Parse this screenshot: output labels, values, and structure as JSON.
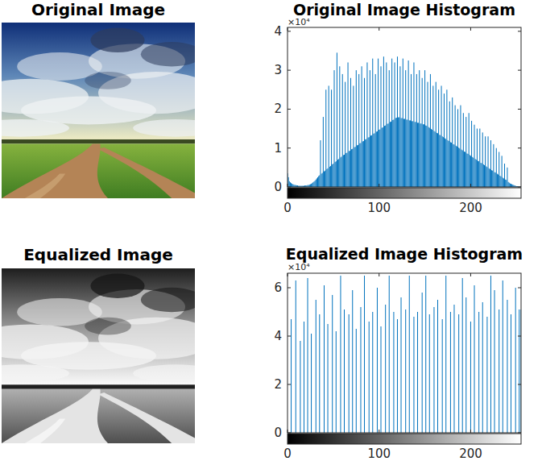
{
  "images": [
    {
      "title": "Original Image"
    },
    {
      "title": "Equalized Image"
    }
  ],
  "chart_data": [
    {
      "type": "stem",
      "title": "Original Image Histogram",
      "y_scale_label": "×10⁴",
      "color": "#0072bd",
      "grid": false,
      "xlim": [
        0,
        255
      ],
      "xticks": [
        0,
        100,
        200
      ],
      "ylim": [
        0,
        4.1
      ],
      "yticks": [
        0,
        1,
        2,
        3,
        4
      ],
      "x": [
        0,
        1,
        2,
        3,
        4,
        5,
        6,
        7,
        8,
        9,
        10,
        11,
        12,
        13,
        14,
        15,
        16,
        17,
        18,
        19,
        20,
        21,
        22,
        23,
        24,
        25,
        26,
        27,
        28,
        29,
        30,
        31,
        32,
        33,
        34,
        35,
        36,
        37,
        38,
        39,
        40,
        41,
        42,
        43,
        44,
        45,
        46,
        47,
        48,
        49,
        50,
        51,
        52,
        53,
        54,
        55,
        56,
        57,
        58,
        59,
        60,
        61,
        62,
        63,
        64,
        65,
        66,
        67,
        68,
        69,
        70,
        71,
        72,
        73,
        74,
        75,
        76,
        77,
        78,
        79,
        80,
        81,
        82,
        83,
        84,
        85,
        86,
        87,
        88,
        89,
        90,
        91,
        92,
        93,
        94,
        95,
        96,
        97,
        98,
        99,
        100,
        101,
        102,
        103,
        104,
        105,
        106,
        107,
        108,
        109,
        110,
        111,
        112,
        113,
        114,
        115,
        116,
        117,
        118,
        119,
        120,
        121,
        122,
        123,
        124,
        125,
        126,
        127,
        128,
        129,
        130,
        131,
        132,
        133,
        134,
        135,
        136,
        137,
        138,
        139,
        140,
        141,
        142,
        143,
        144,
        145,
        146,
        147,
        148,
        149,
        150,
        151,
        152,
        153,
        154,
        155,
        156,
        157,
        158,
        159,
        160,
        161,
        162,
        163,
        164,
        165,
        166,
        167,
        168,
        169,
        170,
        171,
        172,
        173,
        174,
        175,
        176,
        177,
        178,
        179,
        180,
        181,
        182,
        183,
        184,
        185,
        186,
        187,
        188,
        189,
        190,
        191,
        192,
        193,
        194,
        195,
        196,
        197,
        198,
        199,
        200,
        201,
        202,
        203,
        204,
        205,
        206,
        207,
        208,
        209,
        210,
        211,
        212,
        213,
        214,
        215,
        216,
        217,
        218,
        219,
        220,
        221,
        222,
        223,
        224,
        225,
        226,
        227,
        228,
        229,
        230,
        231,
        232,
        233,
        234,
        235,
        236,
        237,
        238,
        239,
        240,
        241,
        242,
        243,
        244,
        245,
        246,
        247,
        248,
        249,
        250,
        251,
        252,
        253,
        254,
        255
      ],
      "values": [
        0.35,
        0.25,
        0.15,
        0.12,
        0.1,
        0.08,
        0.07,
        0.06,
        0.05,
        0.05,
        0.04,
        0.04,
        0.03,
        0.03,
        0.03,
        0.03,
        0.03,
        0.03,
        0.03,
        0.04,
        0.04,
        0.04,
        0.05,
        0.05,
        0.06,
        0.07,
        0.08,
        0.1,
        0.12,
        0.14,
        0.16,
        0.19,
        0.22,
        0.25,
        0.28,
        0.3,
        1.2,
        0.34,
        0.36,
        1.8,
        0.4,
        0.42,
        2.5,
        0.46,
        0.48,
        2.6,
        0.52,
        0.54,
        2.5,
        0.58,
        0.6,
        3.0,
        0.64,
        0.66,
        3.45,
        0.7,
        0.72,
        3.1,
        0.76,
        0.78,
        2.9,
        0.82,
        0.83,
        2.7,
        0.87,
        0.88,
        3.2,
        0.92,
        0.93,
        2.8,
        0.97,
        0.98,
        2.6,
        1.02,
        1.03,
        3.0,
        1.07,
        1.08,
        2.9,
        1.12,
        1.13,
        3.1,
        1.17,
        1.18,
        2.8,
        1.22,
        1.23,
        3.2,
        1.27,
        1.28,
        3.0,
        1.32,
        1.33,
        3.3,
        1.37,
        1.38,
        2.9,
        1.42,
        1.43,
        3.3,
        1.47,
        1.48,
        3.1,
        1.52,
        1.53,
        3.35,
        1.57,
        1.58,
        3.2,
        1.62,
        1.63,
        3.0,
        1.67,
        1.68,
        3.3,
        1.72,
        1.73,
        3.2,
        1.77,
        1.78,
        3.35,
        1.79,
        1.79,
        3.1,
        1.77,
        1.77,
        3.3,
        1.75,
        1.75,
        3.0,
        1.73,
        1.73,
        3.25,
        1.71,
        1.71,
        2.9,
        1.69,
        1.69,
        3.2,
        1.67,
        1.67,
        2.9,
        1.65,
        1.65,
        3.0,
        1.63,
        1.63,
        2.8,
        1.61,
        1.61,
        3.0,
        1.58,
        1.57,
        2.7,
        1.54,
        1.52,
        2.9,
        1.49,
        1.47,
        2.6,
        1.44,
        1.42,
        2.7,
        1.39,
        1.38,
        2.5,
        1.34,
        1.33,
        2.6,
        1.3,
        1.28,
        2.4,
        1.25,
        1.23,
        2.5,
        1.2,
        1.18,
        2.2,
        1.15,
        1.14,
        2.3,
        1.1,
        1.09,
        2.1,
        1.06,
        1.04,
        2.0,
        1.01,
        0.99,
        2.1,
        0.96,
        0.94,
        1.9,
        0.91,
        0.9,
        1.8,
        0.86,
        0.85,
        1.9,
        0.82,
        0.8,
        1.7,
        0.77,
        0.75,
        1.6,
        0.72,
        0.7,
        1.5,
        0.67,
        0.66,
        1.5,
        0.62,
        0.61,
        1.4,
        0.58,
        0.56,
        1.3,
        0.53,
        0.51,
        1.3,
        0.48,
        0.46,
        1.2,
        0.43,
        0.42,
        1.1,
        0.38,
        0.37,
        1.0,
        0.34,
        0.32,
        0.9,
        0.29,
        0.27,
        0.8,
        0.24,
        0.22,
        0.6,
        0.19,
        0.18,
        0.5,
        0.13,
        0.11,
        0.09,
        0.08,
        0.07,
        0.06,
        0.05,
        0.04,
        0.03,
        0.02,
        0.02,
        0.01,
        0.01,
        0.01,
        0.01
      ]
    },
    {
      "type": "stem",
      "title": "Equalized Image Histogram",
      "y_scale_label": "×10⁴",
      "color": "#0072bd",
      "grid": false,
      "xlim": [
        0,
        255
      ],
      "xticks": [
        0,
        100,
        200
      ],
      "ylim": [
        0,
        6.6
      ],
      "yticks": [
        0,
        2,
        4,
        6
      ],
      "x": [
        4,
        9,
        14,
        18,
        22,
        26,
        31,
        35,
        40,
        44,
        49,
        53,
        58,
        62,
        67,
        71,
        75,
        80,
        84,
        89,
        93,
        98,
        102,
        107,
        111,
        116,
        120,
        124,
        129,
        133,
        138,
        142,
        147,
        151,
        155,
        160,
        164,
        169,
        173,
        178,
        182,
        187,
        191,
        195,
        200,
        204,
        209,
        213,
        218,
        222,
        226,
        231,
        235,
        240,
        244,
        249,
        253,
        255
      ],
      "values": [
        4.7,
        6.3,
        3.8,
        4.6,
        6.4,
        4.1,
        5.5,
        4.9,
        6.1,
        4.5,
        5.7,
        4.2,
        6.5,
        5.1,
        4.9,
        5.9,
        4.3,
        5.2,
        6.5,
        4.6,
        5.0,
        6.0,
        4.4,
        5.3,
        6.5,
        5.0,
        4.7,
        5.6,
        5.1,
        6.5,
        4.8,
        5.0,
        5.8,
        6.5,
        4.9,
        5.2,
        5.5,
        4.7,
        6.5,
        5.0,
        5.3,
        4.9,
        6.4,
        5.6,
        4.6,
        6.1,
        5.0,
        5.4,
        4.8,
        6.5,
        5.9,
        5.1,
        6.3,
        5.5,
        4.9,
        6.0,
        5.1,
        5.1
      ]
    }
  ]
}
